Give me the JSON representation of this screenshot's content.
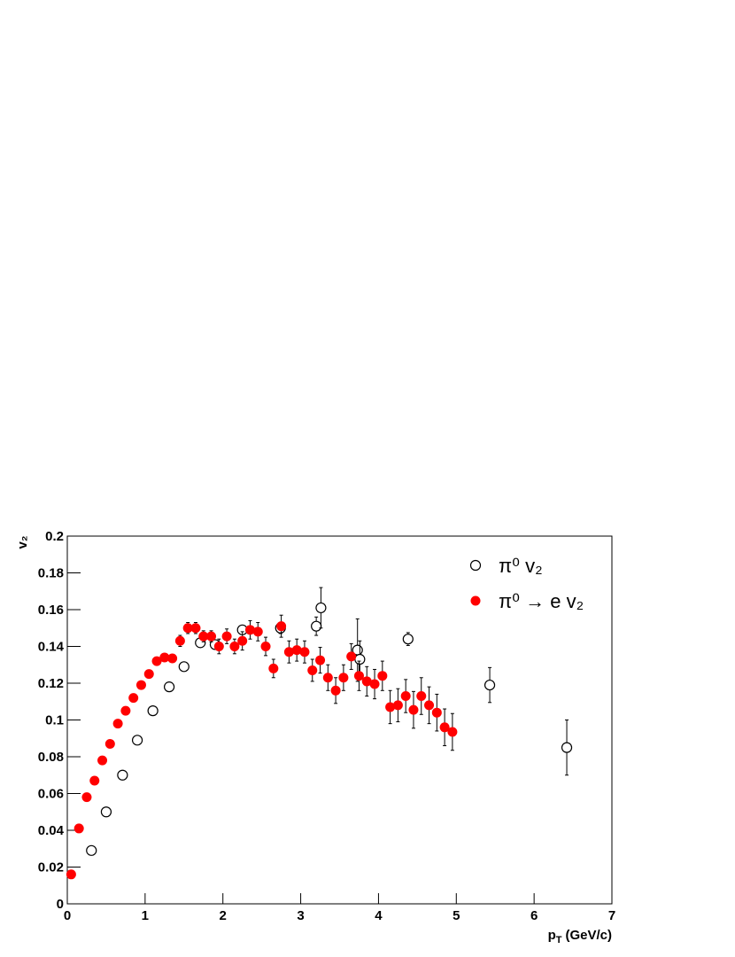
{
  "chart_data": {
    "type": "scatter",
    "ylabel": "v₂",
    "xlabel": [
      "p",
      "T",
      "(GeV/c)"
    ],
    "xlim": [
      0,
      7
    ],
    "xticks": [
      0,
      1,
      2,
      3,
      4,
      5,
      6,
      7
    ],
    "ylim": [
      0,
      0.2
    ],
    "yticks": [
      0,
      0.02,
      0.04,
      0.06,
      0.08,
      0.1,
      0.12,
      0.14,
      0.16,
      0.18,
      0.2
    ],
    "legend": "upper right",
    "series": [
      {
        "name": "π⁰ v₂",
        "color": "#000000",
        "marker": "open",
        "x": [
          0.31,
          0.5,
          0.71,
          0.9,
          1.1,
          1.31,
          1.5,
          1.71,
          1.9,
          2.25,
          2.74,
          3.2,
          3.26,
          3.73,
          3.76,
          4.38,
          5.43,
          6.42
        ],
        "values": [
          0.029,
          0.05,
          0.07,
          0.089,
          0.105,
          0.118,
          0.129,
          0.142,
          0.141,
          0.149,
          0.15,
          0.151,
          0.161,
          0.138,
          0.133,
          0.144,
          0.119,
          0.085
        ],
        "errors": [
          0.0005,
          0.0005,
          0.0005,
          0.0005,
          0.0005,
          0.0005,
          0.0005,
          0.001,
          0.001,
          0.002,
          0.003,
          0.005,
          0.011,
          0.017,
          0.01,
          0.0035,
          0.0095,
          0.015
        ]
      },
      {
        "name": "π⁰ → e v₂",
        "color": "#ff0000",
        "marker": "filled",
        "x": [
          0.05,
          0.15,
          0.25,
          0.35,
          0.45,
          0.55,
          0.65,
          0.75,
          0.85,
          0.95,
          1.05,
          1.15,
          1.25,
          1.35,
          1.45,
          1.55,
          1.65,
          1.75,
          1.85,
          1.95,
          2.05,
          2.15,
          2.25,
          2.35,
          2.45,
          2.55,
          2.65,
          2.75,
          2.85,
          2.95,
          3.05,
          3.15,
          3.25,
          3.35,
          3.45,
          3.55,
          3.65,
          3.75,
          3.85,
          3.95,
          4.05,
          4.15,
          4.25,
          4.35,
          4.45,
          4.55,
          4.65,
          4.75,
          4.85,
          4.95
        ],
        "values": [
          0.016,
          0.041,
          0.058,
          0.067,
          0.078,
          0.087,
          0.098,
          0.105,
          0.112,
          0.119,
          0.125,
          0.132,
          0.134,
          0.1335,
          0.143,
          0.15,
          0.15,
          0.1455,
          0.1455,
          0.14,
          0.1455,
          0.14,
          0.143,
          0.149,
          0.148,
          0.14,
          0.128,
          0.151,
          0.137,
          0.138,
          0.137,
          0.127,
          0.1325,
          0.123,
          0.116,
          0.123,
          0.1345,
          0.124,
          0.121,
          0.1195,
          0.124,
          0.107,
          0.108,
          0.113,
          0.1055,
          0.113,
          0.108,
          0.104,
          0.096,
          0.0935
        ],
        "errors": [
          0.001,
          0.001,
          0.001,
          0.001,
          0.001,
          0.001,
          0.001,
          0.001,
          0.001,
          0.0015,
          0.002,
          0.002,
          0.002,
          0.002,
          0.003,
          0.003,
          0.003,
          0.003,
          0.003,
          0.004,
          0.004,
          0.004,
          0.005,
          0.005,
          0.005,
          0.005,
          0.005,
          0.006,
          0.006,
          0.006,
          0.006,
          0.006,
          0.007,
          0.007,
          0.007,
          0.007,
          0.007,
          0.008,
          0.008,
          0.008,
          0.008,
          0.009,
          0.009,
          0.009,
          0.01,
          0.01,
          0.01,
          0.01,
          0.01,
          0.01
        ]
      }
    ]
  }
}
